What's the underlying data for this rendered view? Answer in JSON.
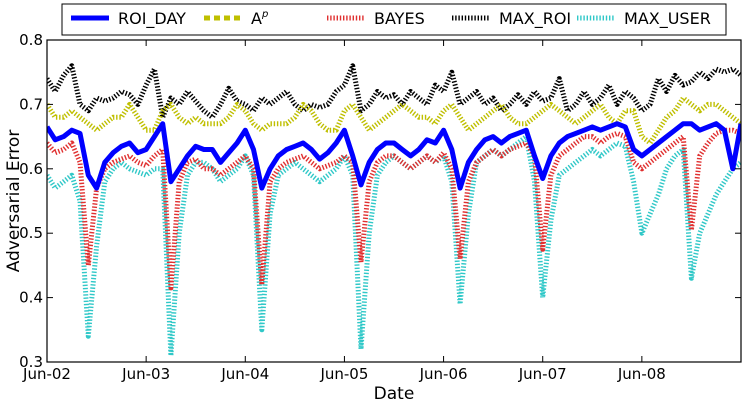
{
  "chart_data": {
    "type": "line",
    "title": "",
    "xlabel": "Date",
    "ylabel": "Adversarial Error",
    "xlim": [
      0,
      7.0
    ],
    "ylim": [
      0.3,
      0.8
    ],
    "x_ticks": [
      {
        "value": 0,
        "label": "Jun-02"
      },
      {
        "value": 1,
        "label": "Jun-03"
      },
      {
        "value": 2,
        "label": "Jun-04"
      },
      {
        "value": 3,
        "label": "Jun-05"
      },
      {
        "value": 4,
        "label": "Jun-06"
      },
      {
        "value": 5,
        "label": "Jun-07"
      },
      {
        "value": 6,
        "label": "Jun-08"
      }
    ],
    "y_ticks": [
      {
        "value": 0.3,
        "label": "0.3"
      },
      {
        "value": 0.4,
        "label": "0.4"
      },
      {
        "value": 0.5,
        "label": "0.5"
      },
      {
        "value": 0.6,
        "label": "0.6"
      },
      {
        "value": 0.7,
        "label": "0.7"
      },
      {
        "value": 0.8,
        "label": "0.8"
      }
    ],
    "legend": {
      "placement": "top",
      "columns": 5
    },
    "x": [
      0.0,
      0.083,
      0.167,
      0.25,
      0.333,
      0.417,
      0.5,
      0.583,
      0.667,
      0.75,
      0.833,
      0.917,
      1.0,
      1.083,
      1.167,
      1.25,
      1.333,
      1.417,
      1.5,
      1.583,
      1.667,
      1.75,
      1.833,
      1.917,
      2.0,
      2.083,
      2.167,
      2.25,
      2.333,
      2.417,
      2.5,
      2.583,
      2.667,
      2.75,
      2.833,
      2.917,
      3.0,
      3.083,
      3.167,
      3.25,
      3.333,
      3.417,
      3.5,
      3.583,
      3.667,
      3.75,
      3.833,
      3.917,
      4.0,
      4.083,
      4.167,
      4.25,
      4.333,
      4.417,
      4.5,
      4.583,
      4.667,
      4.75,
      4.833,
      4.917,
      5.0,
      5.083,
      5.167,
      5.25,
      5.333,
      5.417,
      5.5,
      5.583,
      5.667,
      5.75,
      5.833,
      5.917,
      6.0,
      6.083,
      6.167,
      6.25,
      6.333,
      6.417,
      6.5,
      6.583,
      6.667,
      6.75,
      6.833,
      6.917,
      7.0
    ],
    "series": [
      {
        "name": "ROI_DAY",
        "legend_label": "ROI_DAY",
        "color": "#0000ff",
        "style": "solid",
        "values": [
          0.665,
          0.645,
          0.65,
          0.66,
          0.655,
          0.59,
          0.57,
          0.61,
          0.625,
          0.635,
          0.64,
          0.625,
          0.63,
          0.65,
          0.67,
          0.58,
          0.6,
          0.62,
          0.635,
          0.63,
          0.63,
          0.61,
          0.625,
          0.64,
          0.66,
          0.63,
          0.57,
          0.6,
          0.62,
          0.63,
          0.635,
          0.64,
          0.63,
          0.615,
          0.625,
          0.64,
          0.66,
          0.62,
          0.575,
          0.61,
          0.63,
          0.64,
          0.64,
          0.63,
          0.62,
          0.63,
          0.645,
          0.64,
          0.66,
          0.63,
          0.57,
          0.61,
          0.63,
          0.645,
          0.65,
          0.64,
          0.65,
          0.655,
          0.66,
          0.62,
          0.585,
          0.62,
          0.64,
          0.65,
          0.655,
          0.66,
          0.665,
          0.66,
          0.665,
          0.67,
          0.665,
          0.63,
          0.62,
          0.63,
          0.64,
          0.65,
          0.66,
          0.67,
          0.67,
          0.66,
          0.665,
          0.67,
          0.66,
          0.6,
          0.67
        ]
      },
      {
        "name": "A^p",
        "legend_label": "A",
        "legend_sup": "p",
        "color": "#bfbf00",
        "style": "dotted",
        "values": [
          0.7,
          0.68,
          0.68,
          0.69,
          0.68,
          0.67,
          0.66,
          0.67,
          0.68,
          0.68,
          0.7,
          0.68,
          0.66,
          0.66,
          0.69,
          0.7,
          0.68,
          0.67,
          0.68,
          0.67,
          0.67,
          0.67,
          0.68,
          0.7,
          0.69,
          0.67,
          0.66,
          0.67,
          0.67,
          0.67,
          0.68,
          0.7,
          0.69,
          0.67,
          0.66,
          0.66,
          0.69,
          0.7,
          0.68,
          0.66,
          0.67,
          0.68,
          0.69,
          0.7,
          0.69,
          0.68,
          0.68,
          0.67,
          0.69,
          0.7,
          0.68,
          0.66,
          0.67,
          0.68,
          0.69,
          0.7,
          0.68,
          0.67,
          0.67,
          0.68,
          0.69,
          0.7,
          0.69,
          0.68,
          0.67,
          0.68,
          0.69,
          0.7,
          0.68,
          0.67,
          0.69,
          0.69,
          0.65,
          0.64,
          0.66,
          0.68,
          0.69,
          0.71,
          0.7,
          0.69,
          0.7,
          0.7,
          0.69,
          0.68,
          0.67
        ]
      },
      {
        "name": "BAYES",
        "legend_label": "BAYES",
        "color": "#e03030",
        "style": "dotted",
        "values": [
          0.64,
          0.625,
          0.63,
          0.64,
          0.61,
          0.45,
          0.57,
          0.6,
          0.61,
          0.615,
          0.62,
          0.61,
          0.605,
          0.62,
          0.63,
          0.415,
          0.58,
          0.61,
          0.615,
          0.6,
          0.6,
          0.59,
          0.6,
          0.61,
          0.62,
          0.6,
          0.42,
          0.58,
          0.6,
          0.61,
          0.615,
          0.62,
          0.61,
          0.6,
          0.605,
          0.61,
          0.62,
          0.61,
          0.455,
          0.58,
          0.61,
          0.62,
          0.62,
          0.61,
          0.6,
          0.61,
          0.62,
          0.61,
          0.625,
          0.6,
          0.46,
          0.58,
          0.61,
          0.62,
          0.63,
          0.62,
          0.63,
          0.635,
          0.64,
          0.62,
          0.475,
          0.59,
          0.62,
          0.63,
          0.64,
          0.65,
          0.65,
          0.64,
          0.65,
          0.655,
          0.65,
          0.61,
          0.6,
          0.61,
          0.62,
          0.63,
          0.64,
          0.65,
          0.505,
          0.62,
          0.64,
          0.655,
          0.66,
          0.66,
          0.655
        ]
      },
      {
        "name": "MAX_ROI",
        "legend_label": "MAX_ROI",
        "color": "#000000",
        "style": "dotted",
        "values": [
          0.74,
          0.72,
          0.745,
          0.76,
          0.7,
          0.69,
          0.71,
          0.705,
          0.71,
          0.72,
          0.715,
          0.7,
          0.73,
          0.755,
          0.68,
          0.71,
          0.7,
          0.72,
          0.705,
          0.69,
          0.68,
          0.7,
          0.725,
          0.705,
          0.7,
          0.69,
          0.71,
          0.7,
          0.71,
          0.72,
          0.7,
          0.69,
          0.7,
          0.695,
          0.7,
          0.72,
          0.73,
          0.76,
          0.69,
          0.7,
          0.72,
          0.71,
          0.715,
          0.7,
          0.72,
          0.71,
          0.7,
          0.73,
          0.72,
          0.75,
          0.7,
          0.71,
          0.72,
          0.7,
          0.71,
          0.69,
          0.7,
          0.715,
          0.7,
          0.72,
          0.705,
          0.71,
          0.74,
          0.69,
          0.7,
          0.72,
          0.7,
          0.71,
          0.73,
          0.7,
          0.72,
          0.71,
          0.69,
          0.7,
          0.74,
          0.72,
          0.745,
          0.73,
          0.735,
          0.75,
          0.74,
          0.755,
          0.75,
          0.755,
          0.745
        ]
      },
      {
        "name": "MAX_USER",
        "legend_label": "MAX_USER",
        "color": "#30c8c8",
        "style": "dotted",
        "values": [
          0.59,
          0.57,
          0.58,
          0.59,
          0.55,
          0.34,
          0.48,
          0.58,
          0.6,
          0.61,
          0.6,
          0.595,
          0.59,
          0.6,
          0.6,
          0.31,
          0.5,
          0.59,
          0.61,
          0.61,
          0.6,
          0.58,
          0.59,
          0.6,
          0.62,
          0.59,
          0.35,
          0.53,
          0.59,
          0.6,
          0.61,
          0.6,
          0.59,
          0.58,
          0.59,
          0.6,
          0.62,
          0.59,
          0.32,
          0.5,
          0.59,
          0.61,
          0.62,
          0.61,
          0.6,
          0.61,
          0.62,
          0.61,
          0.62,
          0.58,
          0.39,
          0.53,
          0.61,
          0.62,
          0.63,
          0.62,
          0.63,
          0.64,
          0.65,
          0.58,
          0.4,
          0.52,
          0.59,
          0.6,
          0.61,
          0.62,
          0.63,
          0.62,
          0.63,
          0.64,
          0.635,
          0.58,
          0.5,
          0.53,
          0.56,
          0.6,
          0.62,
          0.63,
          0.43,
          0.5,
          0.53,
          0.56,
          0.58,
          0.6,
          0.61
        ]
      }
    ]
  }
}
